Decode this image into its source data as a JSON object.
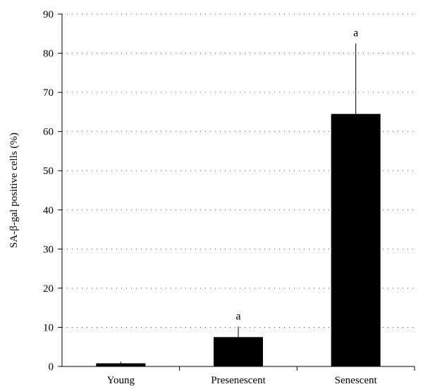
{
  "chart_data": {
    "type": "bar",
    "title": "",
    "xlabel": "",
    "ylabel": "SA-β-gal positive cells (%)",
    "categories": [
      "Young",
      "Presenescent",
      "Senescent"
    ],
    "values": [
      0.8,
      7.5,
      64.5
    ],
    "error_upper": [
      1.2,
      10.2,
      82.5
    ],
    "annotations": [
      "",
      "a",
      "a"
    ],
    "ylim": [
      0,
      90
    ],
    "yticks": [
      0,
      10,
      20,
      30,
      40,
      50,
      60,
      70,
      80,
      90
    ],
    "grid": "dotted horizontal",
    "bar_color": "#000000"
  }
}
